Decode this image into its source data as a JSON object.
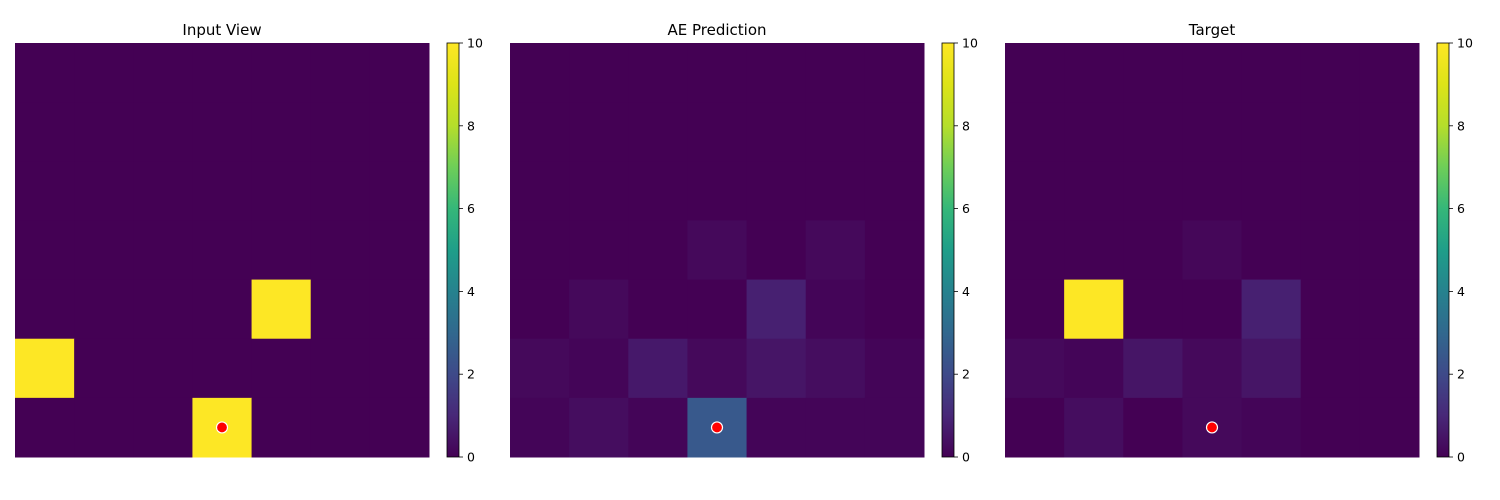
{
  "chart_data": [
    {
      "type": "heatmap",
      "title": "Input View",
      "grid_size": [
        7,
        7
      ],
      "colormap": "viridis",
      "colorbar": {
        "vmin": 0,
        "vmax": 10,
        "ticks": [
          0,
          2,
          4,
          6,
          8,
          10
        ]
      },
      "marker": {
        "row": 6,
        "col": 3,
        "color": "#ff0000"
      },
      "values": [
        [
          0,
          0,
          0,
          0,
          0,
          0,
          0
        ],
        [
          0,
          0,
          0,
          0,
          0,
          0,
          0
        ],
        [
          0,
          0,
          0,
          0,
          0,
          0,
          0
        ],
        [
          0,
          0,
          0,
          0,
          0,
          0,
          0
        ],
        [
          0,
          0,
          0,
          0,
          10,
          0,
          0
        ],
        [
          10,
          0,
          0,
          0,
          0,
          0,
          0
        ],
        [
          0,
          0,
          0,
          10,
          0,
          0,
          0
        ]
      ]
    },
    {
      "type": "heatmap",
      "title": "AE Prediction",
      "grid_size": [
        7,
        7
      ],
      "colormap": "viridis",
      "colorbar": {
        "vmin": 0,
        "vmax": 10,
        "ticks": [
          0,
          2,
          4,
          6,
          8,
          10
        ]
      },
      "marker": {
        "row": 6,
        "col": 3,
        "color": "#ff0000"
      },
      "values": [
        [
          0,
          0,
          0,
          0,
          0,
          0,
          0
        ],
        [
          0,
          0,
          0,
          0,
          0,
          0,
          0
        ],
        [
          0,
          0,
          0,
          0,
          0,
          0,
          0
        ],
        [
          0,
          0,
          0,
          0.2,
          0,
          0.2,
          0
        ],
        [
          0,
          0.2,
          0,
          0,
          0.8,
          0.1,
          0
        ],
        [
          0.2,
          0.1,
          0.6,
          0.2,
          0.5,
          0.3,
          0.1
        ],
        [
          0.1,
          0.3,
          0.1,
          2.5,
          0.1,
          0.1,
          0.1
        ]
      ]
    },
    {
      "type": "heatmap",
      "title": "Target",
      "grid_size": [
        7,
        7
      ],
      "colormap": "viridis",
      "colorbar": {
        "vmin": 0,
        "vmax": 10,
        "ticks": [
          0,
          2,
          4,
          6,
          8,
          10
        ]
      },
      "marker": {
        "row": 6,
        "col": 3,
        "color": "#ff0000"
      },
      "values": [
        [
          0,
          0,
          0,
          0,
          0,
          0,
          0
        ],
        [
          0,
          0,
          0,
          0,
          0,
          0,
          0
        ],
        [
          0,
          0,
          0,
          0,
          0,
          0,
          0
        ],
        [
          0,
          0,
          0,
          0.15,
          0,
          0,
          0
        ],
        [
          0,
          10,
          0,
          0,
          0.8,
          0,
          0
        ],
        [
          0.2,
          0.1,
          0.5,
          0.2,
          0.5,
          0,
          0
        ],
        [
          0,
          0.3,
          0,
          0.2,
          0.1,
          0,
          0
        ]
      ]
    }
  ]
}
